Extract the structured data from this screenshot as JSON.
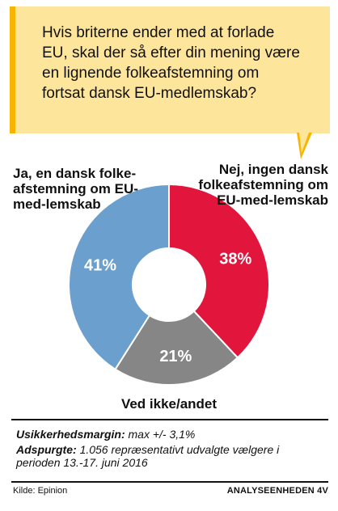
{
  "question": "Hvis briterne ender med at forlade EU, skal der så efter din mening være en lignende folkeafstemning om fortsat dansk EU-medlemskab?",
  "colors": {
    "bubble": "#fde59b",
    "accent": "#f7b500"
  },
  "chart_data": {
    "type": "pie",
    "donut": true,
    "slices": [
      {
        "label": "Nej, ingen dansk folkeafstemning om EU-medlemskab",
        "value": 38,
        "display": "38%",
        "color": "#e2163c"
      },
      {
        "label": "Ved ikke/andet",
        "value": 21,
        "display": "21%",
        "color": "#868686"
      },
      {
        "label": "Ja, en dansk folkeafstemning om EU-medlemskab",
        "value": 41,
        "display": "41%",
        "color": "#6b9fce"
      }
    ]
  },
  "labels": {
    "left": "Ja, en dansk folke-afstemning om EU-med-lemskab",
    "right": "Nej, ingen dansk folkeafstemning om EU-med-lemskab",
    "bottom": "Ved ikke/andet"
  },
  "meta": {
    "margin_label": "Usikkerhedsmargin:",
    "margin_value": "max +/- 3,1%",
    "respondents_label": "Adspurgte:",
    "respondents_value": "1.056 repræsentativt udvalgte vælgere i perioden 13.-17. juni 2016"
  },
  "footer": {
    "source": "Kilde: Epinion",
    "brand": "ANALYSEENHEDEN 4V"
  }
}
